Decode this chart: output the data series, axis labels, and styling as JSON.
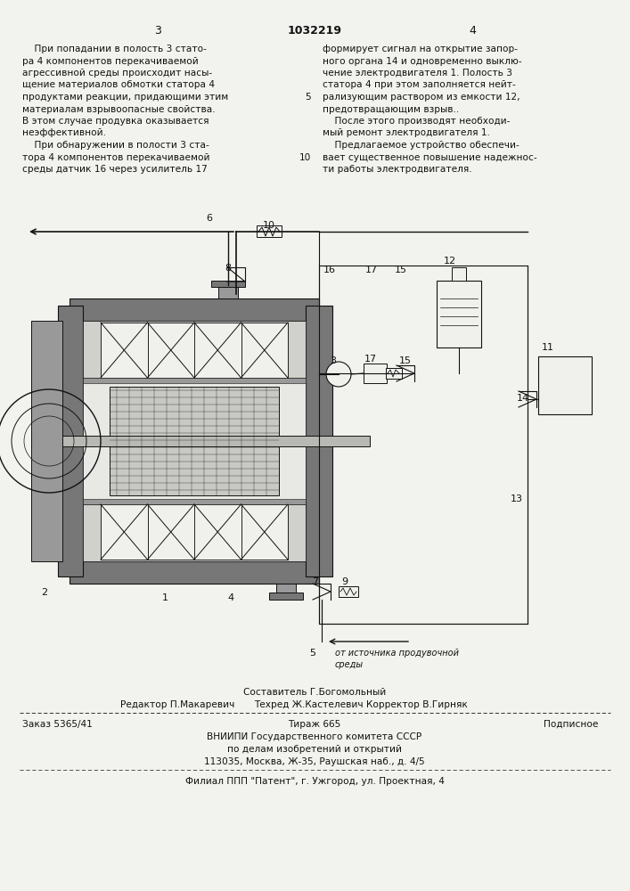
{
  "page_color": "#f2f2ee",
  "text_color": "#111111",
  "title_number": "1032219",
  "page_left": "3",
  "page_right": "4",
  "left_column_text": [
    "    При попадании в полость 3 стато-",
    "ра 4 компонентов перекачиваемой",
    "агрессивной среды происходит насы-",
    "щение материалов обмотки статора 4",
    "продуктами реакции, придающими этим",
    "материалам взрывоопасные свойства.",
    "В этом случае продувка оказывается",
    "неэффективной.",
    "    При обнаружении в полости 3 ста-",
    "тора 4 компонентов перекачиваемой",
    "среды датчик 16 через усилитель 17"
  ],
  "right_column_text": [
    "формирует сигнал на открытие запор-",
    "ного органа 14 и одновременно выклю-",
    "чение электродвигателя 1. Полость 3",
    "статора 4 при этом заполняется нейт-",
    "рализующим раствором из емкости 12,",
    "предотвращающим взрыв..",
    "    После этого производят необходи-",
    "мый ремонт электродвигателя 1.",
    "    Предлагаемое устройство обеспечи-",
    "вает существенное повышение надежнос-",
    "ти работы электродвигателя."
  ],
  "line_number_5": "5",
  "line_number_10": "10",
  "footer_line1": "Составитель Г.Богомольный",
  "footer_line2_left": "Редактор П.Макаревич",
  "footer_line2_mid": "Техред Ж.Кастелевич Корректор В.Гирняк",
  "footer_line3_left": "Заказ 5365/41",
  "footer_line3_mid": "Тираж 665",
  "footer_line3_right": "Подписное",
  "footer_line4": "ВНИИПИ Государственного комитета СССР",
  "footer_line5": "по делам изобретений и открытий",
  "footer_line6": "113035, Москва, Ж-35, Раушская наб., д. 4/5",
  "footer_line7": "Филиал ППП \"Патент\", г. Ужгород, ул. Проектная, 4",
  "source_label_line1": "от источника продувочной",
  "source_label_line2": "среды"
}
